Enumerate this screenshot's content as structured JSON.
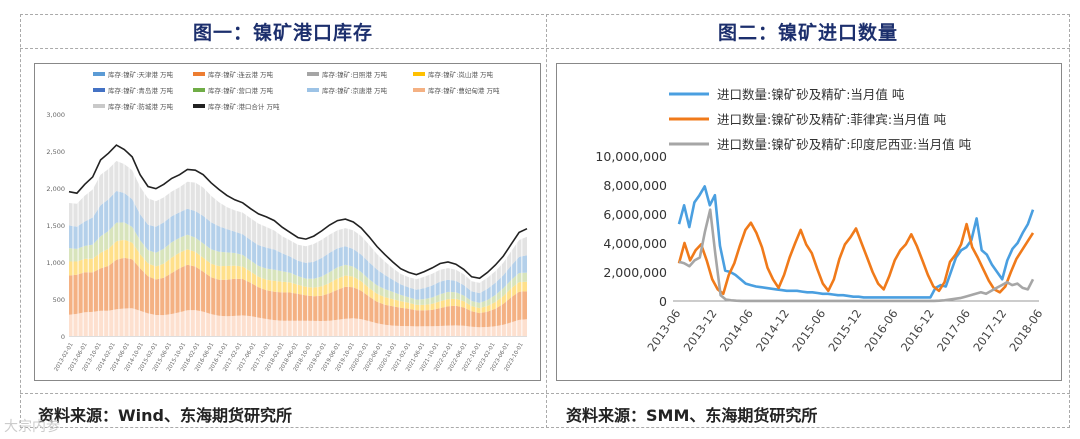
{
  "left": {
    "title": "图一：镍矿港口库存",
    "source": "资料来源：Wind、东海期货研究所",
    "chart_data": {
      "type": "area",
      "title": "",
      "legend_position": "top",
      "legend": [
        {
          "name": "库存:镍矿:天津港 万吨",
          "color": "#5b9bd5"
        },
        {
          "name": "库存:镍矿:连云港 万吨",
          "color": "#ed7d31"
        },
        {
          "name": "库存:镍矿:日照港 万吨",
          "color": "#a5a5a5"
        },
        {
          "name": "库存:镍矿:岚山港 万吨",
          "color": "#ffc000"
        },
        {
          "name": "库存:镍矿:青岛港 万吨",
          "color": "#4472c4"
        },
        {
          "name": "库存:镍矿:营口港 万吨",
          "color": "#70ad47"
        },
        {
          "name": "库存:镍矿:京唐港 万吨",
          "color": "#9dc3e6"
        },
        {
          "name": "库存:镍矿:曹妃甸港 万吨",
          "color": "#f4b183"
        },
        {
          "name": "库存:镍矿:防城港 万吨",
          "color": "#c9c9c9"
        },
        {
          "name": "库存:镍矿:港口合计 万吨",
          "color": "#222222"
        }
      ],
      "yticks": [
        "3,000",
        "2,500",
        "2,000",
        "1,500",
        "1,000",
        "500",
        "0"
      ],
      "ylim": [
        0,
        3000
      ],
      "xticks": [
        "2013-02-01",
        "2013-06-01",
        "2013-10-01",
        "2014-02-01",
        "2014-06-01",
        "2014-10-01",
        "2015-02-01",
        "2015-06-01",
        "2015-10-01",
        "2016-02-01",
        "2016-06-01",
        "2016-10-01",
        "2017-02-01",
        "2017-06-01",
        "2017-10-01",
        "2018-02-01",
        "2018-06-01",
        "2018-10-01",
        "2019-02-01",
        "2019-06-01",
        "2019-10-01",
        "2020-02-01",
        "2020-06-01",
        "2020-10-01",
        "2021-02-01",
        "2021-06-01",
        "2021-10-01",
        "2022-02-01",
        "2022-06-01",
        "2022-10-01",
        "2023-02-01",
        "2023-06-01",
        "2023-10-01"
      ],
      "total": [
        1950,
        1930,
        2050,
        2150,
        2380,
        2470,
        2580,
        2520,
        2420,
        2180,
        2020,
        1990,
        2050,
        2130,
        2180,
        2250,
        2240,
        2180,
        2070,
        1980,
        1900,
        1840,
        1800,
        1720,
        1650,
        1610,
        1560,
        1470,
        1400,
        1330,
        1310,
        1350,
        1420,
        1500,
        1560,
        1580,
        1540,
        1460,
        1340,
        1210,
        1100,
        1000,
        910,
        860,
        830,
        870,
        920,
        980,
        1000,
        970,
        900,
        800,
        780,
        860,
        960,
        1080,
        1240,
        1400,
        1450
      ],
      "stack_share": [
        {
          "color": "#fde0cf",
          "share": 0.16
        },
        {
          "color": "#f4b183",
          "share": 0.28
        },
        {
          "color": "#ffe08a",
          "share": 0.1
        },
        {
          "color": "#d8e4bc",
          "share": 0.1
        },
        {
          "color": "#b4d0ea",
          "share": 0.18
        },
        {
          "color": "#e3e3e3",
          "share": 0.18
        }
      ]
    }
  },
  "right": {
    "title": "图二：镍矿进口数量",
    "source": "资料来源：SMM、东海期货研究所",
    "chart_data": {
      "type": "line",
      "title": "",
      "legend_position": "top",
      "ylim": [
        0,
        10000000
      ],
      "yticks": [
        10000000,
        8000000,
        6000000,
        4000000,
        2000000,
        0
      ],
      "ytick_labels": [
        "10,000,000",
        "8,000,000",
        "6,000,000",
        "4,000,000",
        "2,000,000",
        "0"
      ],
      "x_labels": [
        "2013-06",
        "2013-12",
        "2014-06",
        "2014-12",
        "2015-06",
        "2015-12",
        "2016-06",
        "2016-12",
        "2017-06",
        "2017-12",
        "2018-06"
      ],
      "series": [
        {
          "name": "进口数量:镍矿砂及精矿:当月值 吨",
          "color": "#4a9fe0",
          "values": [
            5300000,
            6600000,
            5100000,
            6800000,
            7300000,
            7900000,
            6600000,
            7300000,
            3800000,
            2100000,
            2000000,
            1800000,
            1500000,
            1200000,
            1100000,
            1000000,
            950000,
            900000,
            850000,
            800000,
            750000,
            700000,
            700000,
            700000,
            650000,
            600000,
            600000,
            550000,
            500000,
            500000,
            450000,
            400000,
            400000,
            350000,
            300000,
            300000,
            250000,
            250000,
            250000,
            250000,
            250000,
            250000,
            250000,
            250000,
            250000,
            250000,
            250000,
            250000,
            250000,
            250000,
            900000,
            1100000,
            1000000,
            2000000,
            3000000,
            3500000,
            3700000,
            4200000,
            5700000,
            3500000,
            3200000,
            2500000,
            2000000,
            1500000,
            2800000,
            3600000,
            4000000,
            4700000,
            5300000,
            6300000
          ]
        },
        {
          "name": "进口数量:镍矿砂及精矿:菲律宾:当月值 吨",
          "color": "#f07a1a",
          "values": [
            2600000,
            4000000,
            2800000,
            3500000,
            3900000,
            2800000,
            1500000,
            800000,
            500000,
            1800000,
            2600000,
            3800000,
            4900000,
            5400000,
            4700000,
            3700000,
            2300000,
            1500000,
            900000,
            1800000,
            3000000,
            4000000,
            4900000,
            3900000,
            3300000,
            2200000,
            1200000,
            700000,
            1500000,
            2900000,
            3900000,
            4400000,
            5000000,
            4000000,
            3000000,
            2000000,
            1200000,
            800000,
            1700000,
            2800000,
            3500000,
            3900000,
            4600000,
            3800000,
            2800000,
            1800000,
            1000000,
            700000,
            1300000,
            2700000,
            3200000,
            3900000,
            5300000,
            3700000,
            3000000,
            2200000,
            1400000,
            800000,
            600000,
            1000000,
            2000000,
            2900000,
            3500000,
            4100000,
            4700000
          ]
        },
        {
          "name": "进口数量:镍矿砂及精矿:印度尼西亚:当月值 吨",
          "color": "#a6a6a6",
          "values": [
            2700000,
            2600000,
            2400000,
            2800000,
            3000000,
            4800000,
            6300000,
            3200000,
            400000,
            100000,
            50000,
            20000,
            10000,
            10000,
            10000,
            10000,
            10000,
            10000,
            10000,
            10000,
            10000,
            10000,
            10000,
            10000,
            10000,
            10000,
            10000,
            10000,
            10000,
            10000,
            10000,
            10000,
            10000,
            10000,
            10000,
            10000,
            10000,
            10000,
            10000,
            10000,
            10000,
            10000,
            10000,
            10000,
            10000,
            10000,
            10000,
            10000,
            10000,
            10000,
            20000,
            50000,
            100000,
            150000,
            200000,
            300000,
            400000,
            500000,
            600000,
            500000,
            700000,
            900000,
            1100000,
            1300000,
            1100000,
            1200000,
            900000,
            800000,
            1500000
          ]
        }
      ]
    }
  },
  "watermark": "大宗内参"
}
